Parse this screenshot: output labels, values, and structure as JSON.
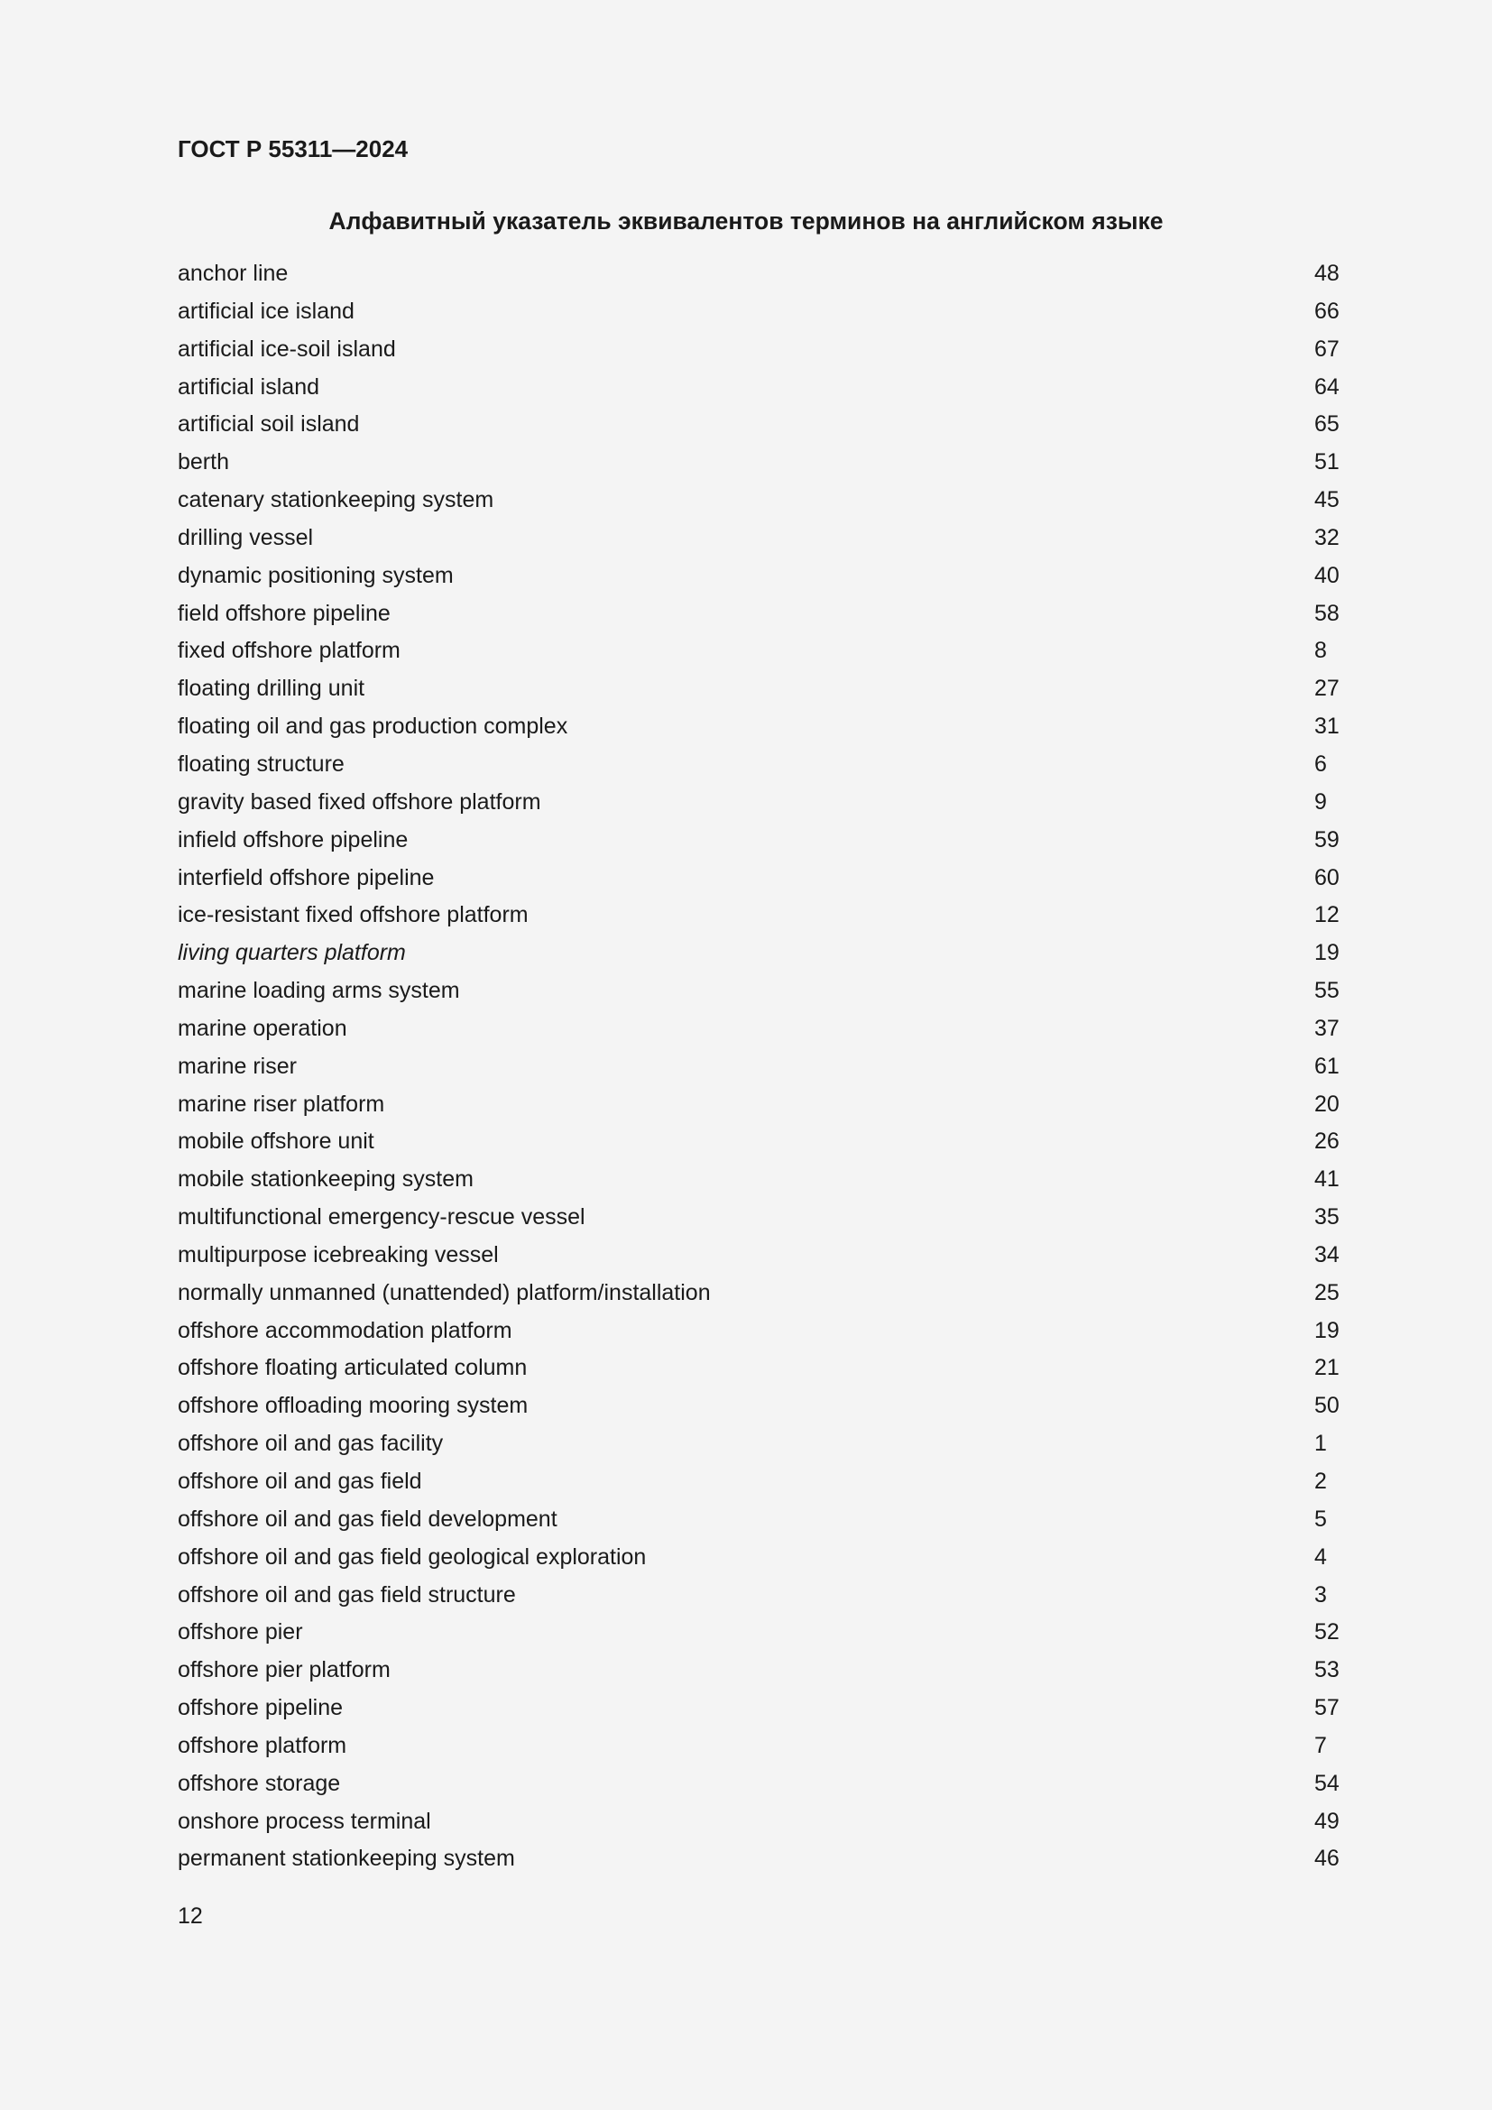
{
  "header": {
    "standard": "ГОСТ Р 55311—2024"
  },
  "title": "Алфавитный указатель эквивалентов терминов на английском языке",
  "entries": [
    {
      "term": "anchor line",
      "num": "48"
    },
    {
      "term": "artificial ice island",
      "num": "66"
    },
    {
      "term": "artificial ice-soil island",
      "num": "67"
    },
    {
      "term": "artificial island",
      "num": "64"
    },
    {
      "term": "artificial soil island",
      "num": "65"
    },
    {
      "term": "berth",
      "num": "51"
    },
    {
      "term": "catenary stationkeeping system",
      "num": "45"
    },
    {
      "term": "drilling vessel",
      "num": "32"
    },
    {
      "term": "dynamic positioning system",
      "num": "40"
    },
    {
      "term": "field offshore pipeline",
      "num": "58"
    },
    {
      "term": "fixed offshore platform",
      "num": "8"
    },
    {
      "term": "floating drilling unit",
      "num": "27"
    },
    {
      "term": "floating oil and gas production complex",
      "num": "31"
    },
    {
      "term": "floating structure",
      "num": "6"
    },
    {
      "term": "gravity based fixed offshore platform",
      "num": "9"
    },
    {
      "term": "infield offshore pipeline",
      "num": "59"
    },
    {
      "term": "interfield offshore pipeline",
      "num": "60"
    },
    {
      "term": "ice-resistant fixed offshore platform",
      "num": "12"
    },
    {
      "term": "living quarters platform",
      "num": "19",
      "italic": true
    },
    {
      "term": "marine loading arms system",
      "num": "55"
    },
    {
      "term": "marine operation",
      "num": "37"
    },
    {
      "term": "marine riser",
      "num": "61"
    },
    {
      "term": "marine riser platform",
      "num": "20"
    },
    {
      "term": "mobile offshore unit",
      "num": "26"
    },
    {
      "term": "mobile stationkeeping system",
      "num": "41"
    },
    {
      "term": "multifunctional emergency-rescue vessel",
      "num": "35"
    },
    {
      "term": "multipurpose icebreaking vessel",
      "num": "34"
    },
    {
      "term": "normally unmanned (unattended) platform/installation",
      "num": "25"
    },
    {
      "term": "offshore accommodation platform",
      "num": "19"
    },
    {
      "term": "offshore floating articulated column",
      "num": "21"
    },
    {
      "term": "offshore offloading mooring system",
      "num": "50"
    },
    {
      "term": "offshore oil and gas facility",
      "num": "1"
    },
    {
      "term": "offshore oil and gas field",
      "num": "2"
    },
    {
      "term": "offshore oil and gas field development",
      "num": "5"
    },
    {
      "term": "offshore oil and gas field geological exploration",
      "num": "4"
    },
    {
      "term": "offshore oil and gas field structure",
      "num": "3"
    },
    {
      "term": "offshore pier",
      "num": "52"
    },
    {
      "term": "offshore pier platform",
      "num": "53"
    },
    {
      "term": "offshore pipeline",
      "num": "57"
    },
    {
      "term": "offshore platform",
      "num": "7"
    },
    {
      "term": "offshore storage",
      "num": "54"
    },
    {
      "term": "onshore process terminal",
      "num": "49"
    },
    {
      "term": "permanent stationkeeping system",
      "num": "46"
    }
  ],
  "page_number": "12"
}
